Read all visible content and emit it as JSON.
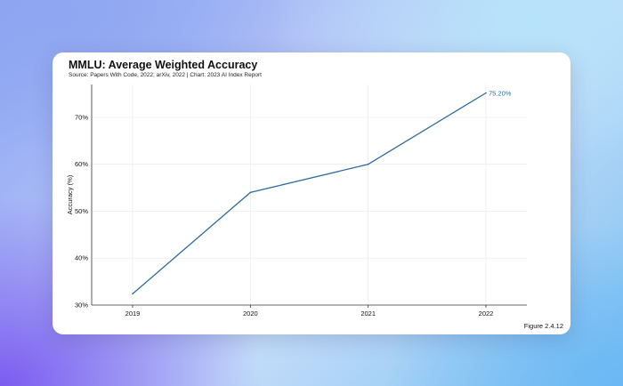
{
  "card": {
    "title": "MMLU: Average Weighted Accuracy",
    "subtitle": "Source: Papers With Code, 2022; arXiv, 2022 | Chart: 2023 AI Index Report",
    "figure_label": "Figure 2.4.12"
  },
  "colors": {
    "line": "#2f6a9f",
    "grid": "#ececec",
    "axis": "#333333"
  },
  "chart_data": {
    "type": "line",
    "title": "MMLU: Average Weighted Accuracy",
    "xlabel": "",
    "ylabel": "Accuracy (%)",
    "x": [
      "2019",
      "2020",
      "2021",
      "2022"
    ],
    "series": [
      {
        "values": [
          32.4,
          54.0,
          60.0,
          75.2
        ]
      }
    ],
    "ylim": [
      30,
      77
    ],
    "yticks": [
      30,
      40,
      50,
      60,
      70
    ],
    "ytick_labels": [
      "30%",
      "40%",
      "50%",
      "60%",
      "70%"
    ],
    "data_labels": [
      {
        "index": 3,
        "text": "75.20%"
      }
    ],
    "grid": true
  }
}
